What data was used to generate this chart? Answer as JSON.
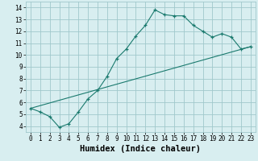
{
  "xlabel": "Humidex (Indice chaleur)",
  "line1_x": [
    0,
    1,
    2,
    3,
    4,
    5,
    6,
    7,
    8,
    9,
    10,
    11,
    12,
    13,
    14,
    15,
    16,
    17,
    18,
    19,
    20,
    21,
    22,
    23
  ],
  "line1_y": [
    5.5,
    5.2,
    4.8,
    3.9,
    4.2,
    5.2,
    6.3,
    7.0,
    8.2,
    9.7,
    10.5,
    11.6,
    12.5,
    13.8,
    13.4,
    13.3,
    13.3,
    12.5,
    12.0,
    11.5,
    11.8,
    11.5,
    10.5,
    10.7
  ],
  "line2_x": [
    0,
    23
  ],
  "line2_y": [
    5.5,
    10.7
  ],
  "line_color": "#1a7a6e",
  "bg_color": "#d8eef0",
  "grid_color": "#a0c8cc",
  "xlim": [
    -0.5,
    23.5
  ],
  "ylim": [
    3.5,
    14.5
  ],
  "xticks": [
    0,
    1,
    2,
    3,
    4,
    5,
    6,
    7,
    8,
    9,
    10,
    11,
    12,
    13,
    14,
    15,
    16,
    17,
    18,
    19,
    20,
    21,
    22,
    23
  ],
  "yticks": [
    4,
    5,
    6,
    7,
    8,
    9,
    10,
    11,
    12,
    13,
    14
  ],
  "tick_fontsize": 5.5,
  "xlabel_fontsize": 7.5,
  "marker": "+"
}
